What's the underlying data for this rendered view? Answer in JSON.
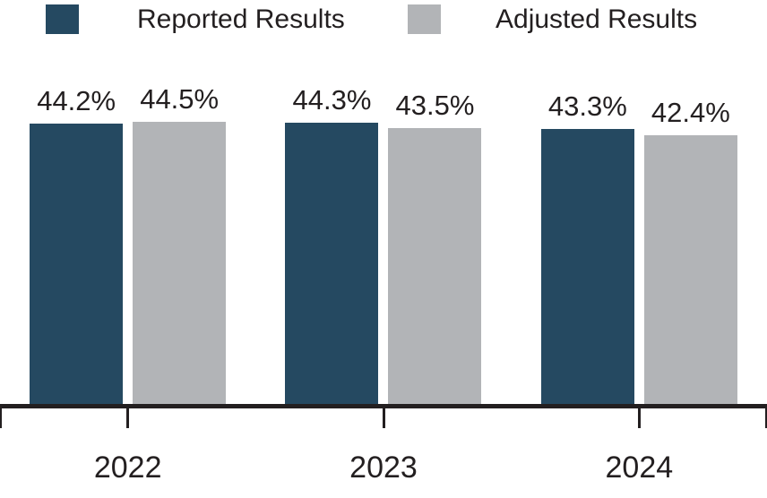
{
  "legend": {
    "items": [
      {
        "label": "Reported Results",
        "color": "#254961"
      },
      {
        "label": "Adjusted Results",
        "color": "#B2B4B7"
      }
    ]
  },
  "chart_data": {
    "type": "bar",
    "categories": [
      "2022",
      "2023",
      "2024"
    ],
    "series": [
      {
        "name": "Reported Results",
        "color": "#254961",
        "values": [
          44.2,
          44.3,
          43.3
        ],
        "labels": [
          "44.2%",
          "44.3%",
          "43.3%"
        ]
      },
      {
        "name": "Adjusted Results",
        "color": "#B2B4B7",
        "values": [
          44.5,
          43.5,
          42.4
        ],
        "labels": [
          "44.5%",
          "43.5%",
          "42.4%"
        ]
      }
    ],
    "value_suffix": "%",
    "ylim": [
      0,
      64
    ],
    "grid": false,
    "legend_position": "top",
    "axis_color": "#231F20",
    "text_color": "#231F20"
  }
}
